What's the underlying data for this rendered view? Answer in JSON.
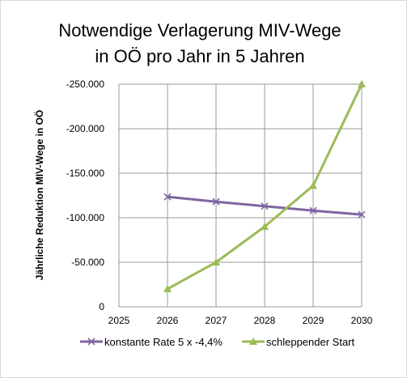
{
  "chart_data": {
    "type": "line",
    "title": [
      "Notwendige Verlagerung MIV-Wege",
      "in OÖ pro Jahr in 5 Jahren"
    ],
    "xlabel": "",
    "ylabel": "Jährliche Reduktion MIV-Wege in OÖ",
    "x": [
      2025,
      2026,
      2027,
      2028,
      2029,
      2030
    ],
    "x_tick_labels": [
      "2025",
      "2026",
      "2027",
      "2028",
      "2029",
      "2030"
    ],
    "y_tick_values": [
      -250000,
      -200000,
      -150000,
      -100000,
      -50000,
      0
    ],
    "y_tick_labels": [
      "-250.000",
      "-200.000",
      "-150.000",
      "-100.000",
      "-50.000",
      "0"
    ],
    "ylim": [
      0,
      -250000
    ],
    "xlim": [
      2025,
      2030
    ],
    "y_axis_reversed": true,
    "grid": true,
    "legend_position": "bottom",
    "series": [
      {
        "name": "konstante Rate 5 x -4,4%",
        "color": "#8064a2",
        "marker": "x",
        "x": [
          2026,
          2027,
          2028,
          2029,
          2030
        ],
        "values": [
          -123500,
          -118000,
          -113000,
          -108000,
          -103500
        ]
      },
      {
        "name": "schleppender Start",
        "color": "#9bbb59",
        "marker": "triangle",
        "x": [
          2026,
          2027,
          2028,
          2029,
          2030
        ],
        "values": [
          -20000,
          -50000,
          -90000,
          -136000,
          -250000
        ]
      }
    ]
  }
}
